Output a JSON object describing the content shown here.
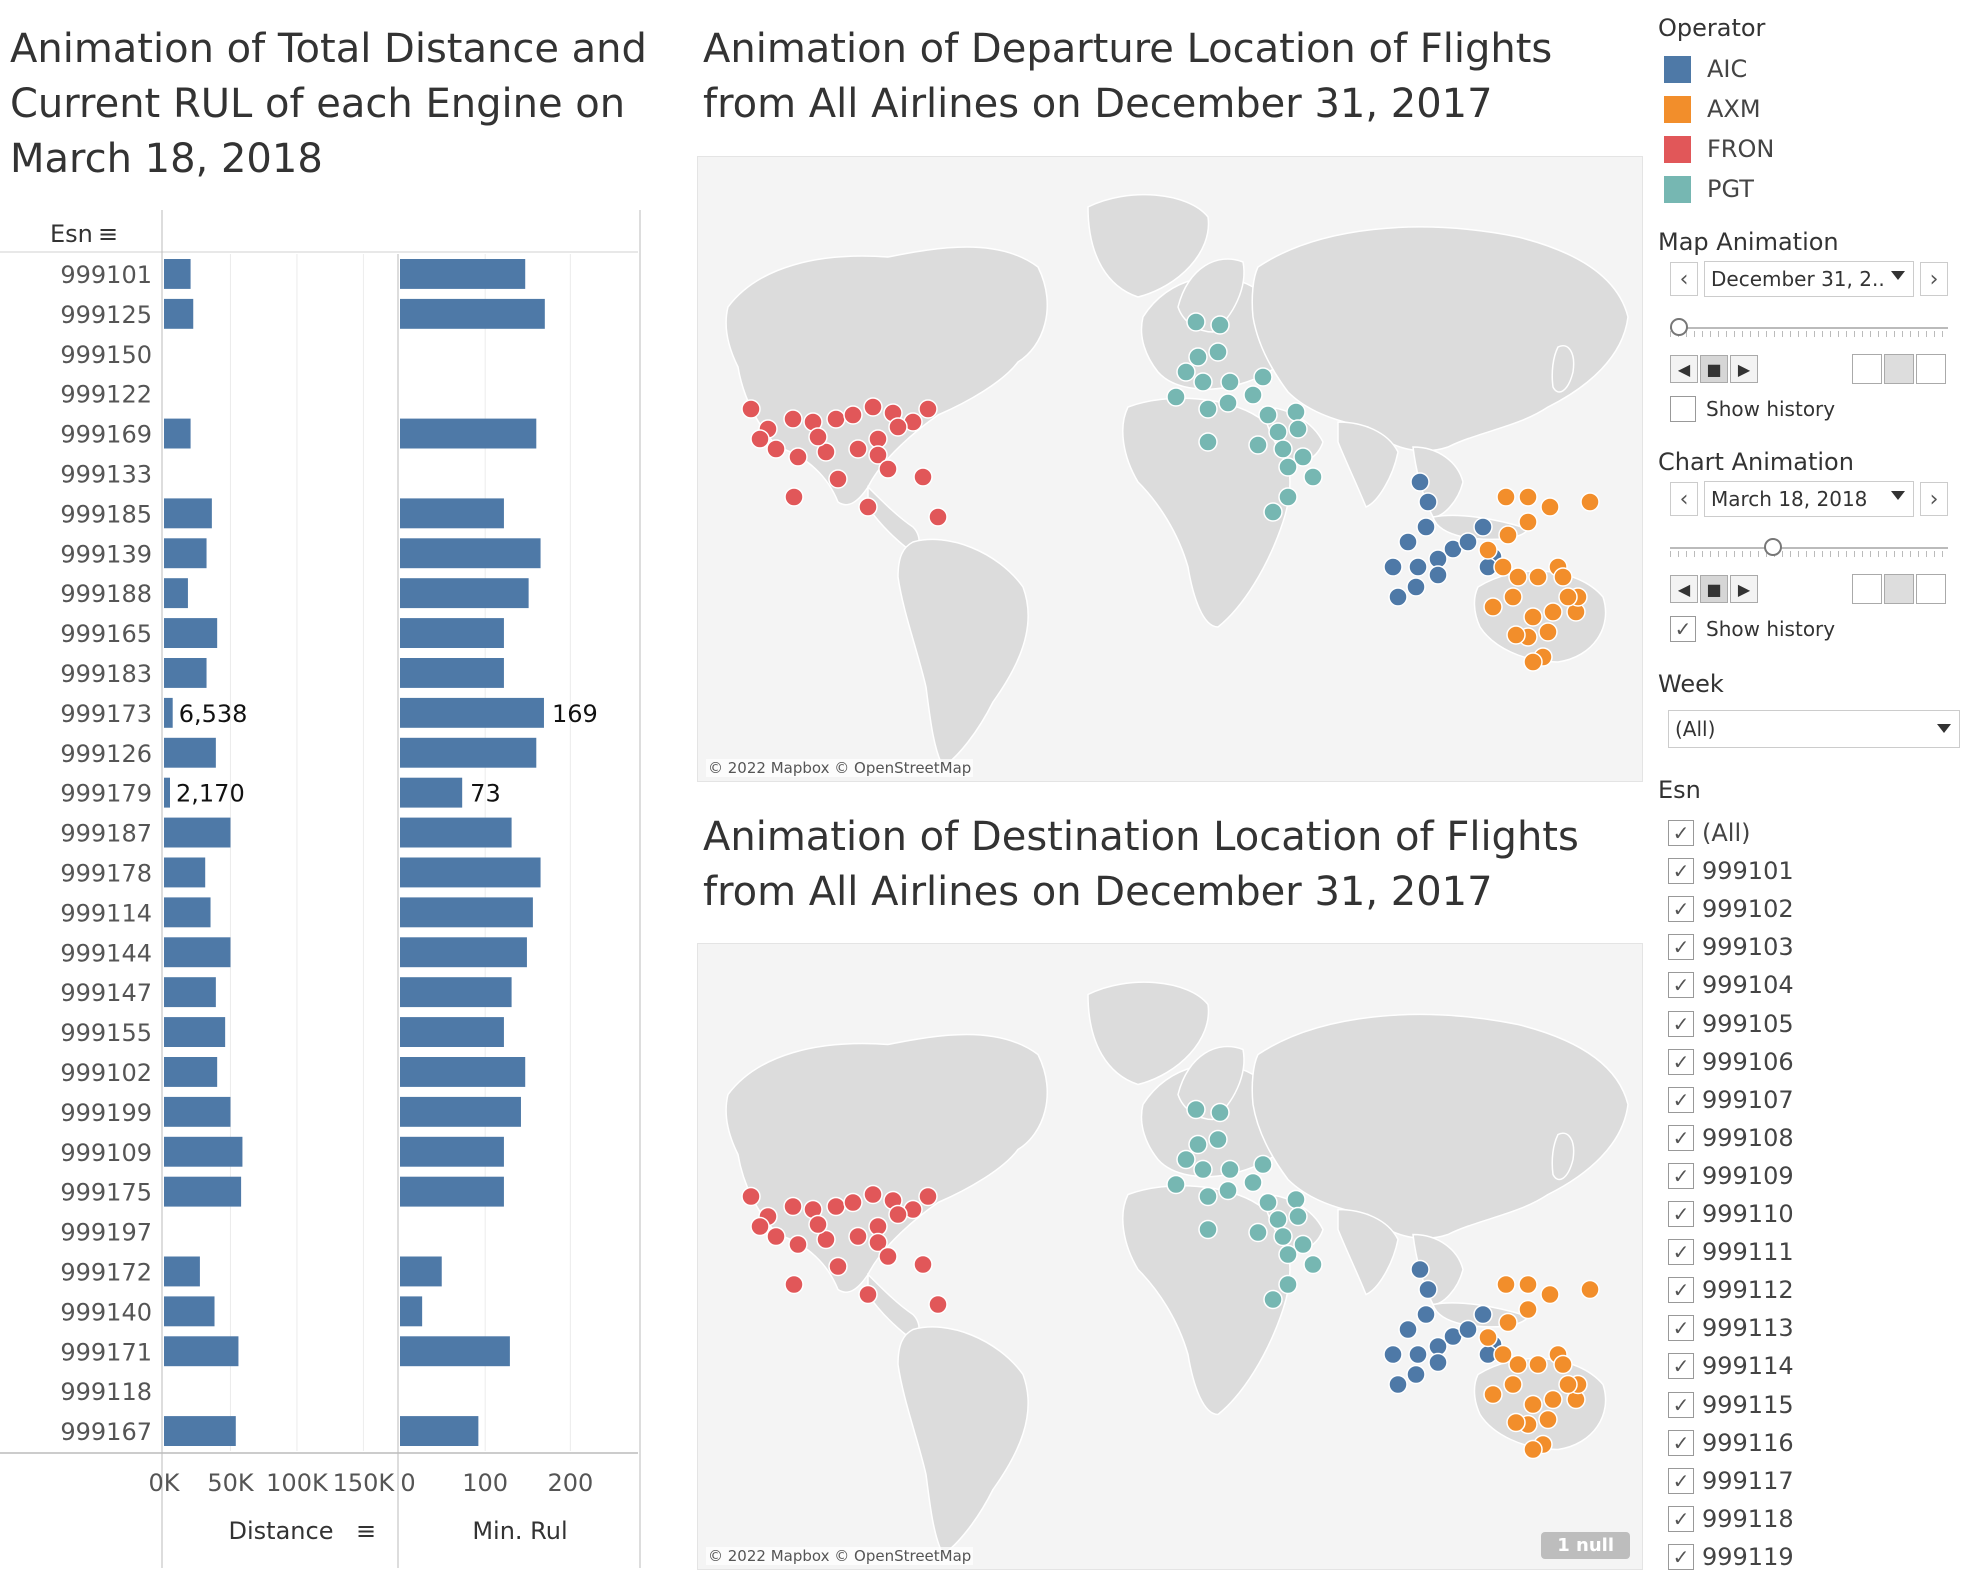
{
  "titles": {
    "left": "Animation of Total Distance and Current RUL of each Engine on March 18, 2018",
    "map_departure": "Animation of Departure Location of Flights from All Airlines on December 31, 2017",
    "map_destination": "Animation of Destination Location of Flights from All Airlines on December 31, 2017"
  },
  "chart_data": {
    "type": "bar",
    "row_header": "Esn",
    "categories": [
      "999101",
      "999125",
      "999150",
      "999122",
      "999169",
      "999133",
      "999185",
      "999139",
      "999188",
      "999165",
      "999183",
      "999173",
      "999126",
      "999179",
      "999187",
      "999178",
      "999114",
      "999144",
      "999147",
      "999155",
      "999102",
      "999199",
      "999109",
      "999175",
      "999197",
      "999172",
      "999140",
      "999171",
      "999118",
      "999167"
    ],
    "series": [
      {
        "name": "Distance",
        "values": [
          20000,
          22000,
          0,
          0,
          20000,
          0,
          36000,
          32000,
          18000,
          40000,
          32000,
          6538,
          39000,
          2170,
          50000,
          31000,
          35000,
          50000,
          39000,
          46000,
          40000,
          50000,
          59000,
          58000,
          0,
          27000,
          38000,
          56000,
          0,
          54000
        ]
      },
      {
        "name": "Min. Rul",
        "values": [
          147,
          170,
          null,
          null,
          160,
          null,
          122,
          165,
          151,
          122,
          122,
          169,
          160,
          73,
          131,
          165,
          156,
          149,
          131,
          122,
          147,
          142,
          122,
          122,
          null,
          49,
          26,
          129,
          null,
          92
        ]
      }
    ],
    "labels": [
      {
        "category": "999173",
        "distance": "6,538",
        "rul": "169"
      },
      {
        "category": "999179",
        "distance": "2,170",
        "rul": "73"
      }
    ],
    "distance_axis": {
      "title": "Distance",
      "ticks": [
        "0K",
        "50K",
        "100K",
        "150K"
      ],
      "range": [
        0,
        170000
      ]
    },
    "rul_axis": {
      "title": "Min. Rul",
      "ticks": [
        "0",
        "100",
        "200"
      ],
      "range": [
        0,
        270
      ]
    }
  },
  "maps": {
    "attribution": "© 2022 Mapbox © OpenStreetMap",
    "null_badge": "1 null"
  },
  "operator_legend": {
    "title": "Operator",
    "items": [
      {
        "label": "AIC",
        "color": "#4e79a7"
      },
      {
        "label": "AXM",
        "color": "#f28e2b"
      },
      {
        "label": "FRON",
        "color": "#e15759"
      },
      {
        "label": "PGT",
        "color": "#76b7b2"
      }
    ]
  },
  "map_animation": {
    "title": "Map Animation",
    "value": "December 31, 2..",
    "show_history": "Show history",
    "history_checked": false
  },
  "chart_animation": {
    "title": "Chart Animation",
    "value": "March 18, 2018",
    "show_history": "Show history",
    "history_checked": true
  },
  "week_filter": {
    "title": "Week",
    "value": "(All)"
  },
  "esn_filter": {
    "title": "Esn",
    "items": [
      "(All)",
      "999101",
      "999102",
      "999103",
      "999104",
      "999105",
      "999106",
      "999107",
      "999108",
      "999109",
      "999110",
      "999111",
      "999112",
      "999113",
      "999114",
      "999115",
      "999116",
      "999117",
      "999118",
      "999119"
    ]
  },
  "icons": {
    "sort": "sort-icon",
    "check": "check-icon",
    "prev": "chevron-left-icon",
    "next": "chevron-right-icon"
  }
}
